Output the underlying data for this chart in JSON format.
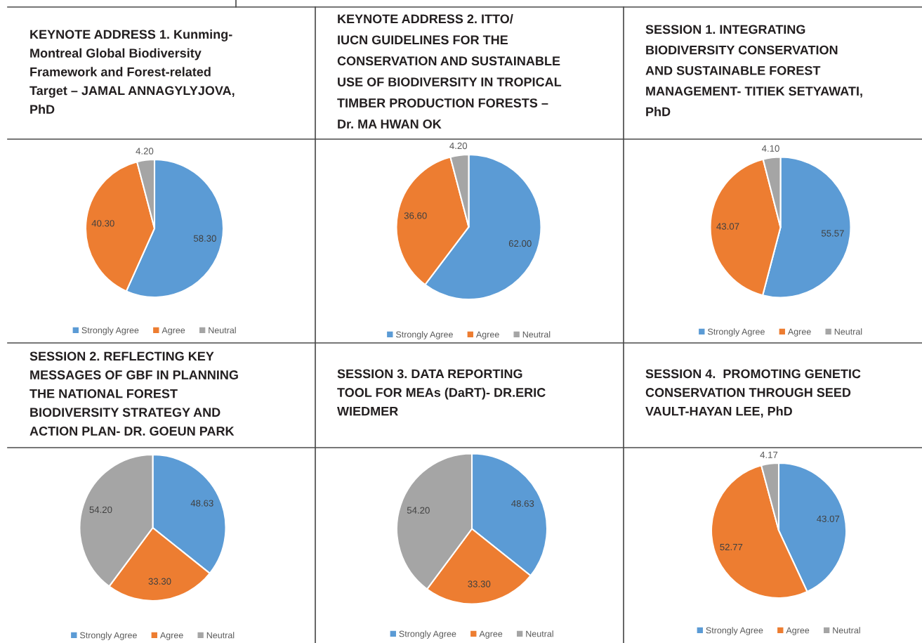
{
  "chart_data": [
    {
      "type": "pie",
      "title": "KEYNOTE ADDRESS 1. Kunming-\nMontreal Global Biodiversity\nFramework and Forest-related\nTarget – JAMAL ANNAGYLYJOVA,\nPhD",
      "categories": [
        "Strongly Agree",
        "Agree",
        "Neutral"
      ],
      "values": [
        58.3,
        40.3,
        4.2
      ],
      "colors": [
        "#5b9bd5",
        "#ed7d31",
        "#a5a5a5"
      ],
      "value_labels": [
        "58.30",
        "40.30",
        "4.20"
      ],
      "legend": "bottom"
    },
    {
      "type": "pie",
      "title": "KEYNOTE ADDRESS 2. ITTO/\nIUCN GUIDELINES FOR THE\nCONSERVATION AND SUSTAINABLE\nUSE OF BIODIVERSITY IN TROPICAL\nTIMBER PRODUCTION FORESTS –\nDr. MA HWAN OK",
      "categories": [
        "Strongly Agree",
        "Agree",
        "Neutral"
      ],
      "values": [
        62.0,
        36.6,
        4.2
      ],
      "colors": [
        "#5b9bd5",
        "#ed7d31",
        "#a5a5a5"
      ],
      "value_labels": [
        "62.00",
        "36.60",
        "4.20"
      ],
      "legend": "bottom"
    },
    {
      "type": "pie",
      "title": "SESSION 1. INTEGRATING\nBIODIVERSITY CONSERVATION\nAND SUSTAINABLE FOREST\nMANAGEMENT- TITIEK SETYAWATI,\nPhD",
      "categories": [
        "Strongly Agree",
        "Agree",
        "Neutral"
      ],
      "values": [
        55.57,
        43.07,
        4.1
      ],
      "colors": [
        "#5b9bd5",
        "#ed7d31",
        "#a5a5a5"
      ],
      "value_labels": [
        "55.57",
        "43.07",
        "4.10"
      ],
      "legend": "bottom"
    },
    {
      "type": "pie",
      "title": "SESSION 2. REFLECTING KEY\nMESSAGES OF GBF IN PLANNING\nTHE NATIONAL FOREST\nBIODIVERSITY STRATEGY AND\nACTION PLAN- DR. GOEUN PARK",
      "categories": [
        "Strongly Agree",
        "Agree",
        "Neutral"
      ],
      "values": [
        48.63,
        33.3,
        54.2
      ],
      "colors": [
        "#5b9bd5",
        "#ed7d31",
        "#a5a5a5"
      ],
      "value_labels": [
        "48.63",
        "33.30",
        "54.20"
      ],
      "legend": "bottom"
    },
    {
      "type": "pie",
      "title": "SESSION 3. DATA REPORTING\nTOOL FOR MEAs (DaRT)- DR.ERIC\nWIEDMER",
      "categories": [
        "Strongly Agree",
        "Agree",
        "Neutral"
      ],
      "values": [
        48.63,
        33.3,
        54.2
      ],
      "colors": [
        "#5b9bd5",
        "#ed7d31",
        "#a5a5a5"
      ],
      "value_labels": [
        "48.63",
        "33.30",
        "54.20"
      ],
      "legend": "bottom"
    },
    {
      "type": "pie",
      "title": "SESSION 4.  PROMOTING GENETIC\nCONSERVATION THROUGH SEED\nVAULT-HAYAN LEE, PhD",
      "categories": [
        "Strongly Agree",
        "Agree",
        "Neutral"
      ],
      "values": [
        43.07,
        52.77,
        4.17
      ],
      "colors": [
        "#5b9bd5",
        "#ed7d31",
        "#a5a5a5"
      ],
      "value_labels": [
        "43.07",
        "52.77",
        "4.17"
      ],
      "legend": "bottom"
    }
  ]
}
